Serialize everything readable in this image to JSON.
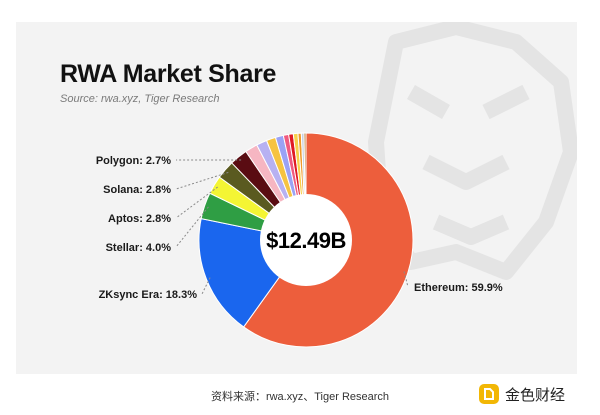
{
  "header": {
    "title": "RWA Market Share",
    "source": "Source: rwa.xyz, Tiger Research"
  },
  "center_value": "$12.49B",
  "footer": {
    "caption": "资料来源：rwa.xyz、Tiger Research",
    "brand": "金色财经"
  },
  "colors": {
    "background": "#f3f3f3",
    "watermark": "#e4e4e4",
    "ethereum": "#ed5e3c",
    "zksync": "#1a66ee",
    "stellar": "#2f9e44",
    "aptos": "#f4f534",
    "solana": "#5a5a20",
    "polygon": "#5a0c12",
    "brand_icon": "#f2b705"
  },
  "chart_data": {
    "type": "pie",
    "title": "RWA Market Share",
    "center_label": "$12.49B",
    "labelled_slices": [
      {
        "name": "Ethereum",
        "value": 59.9,
        "label": "Ethereum: 59.9%",
        "color": "#ed5e3c"
      },
      {
        "name": "ZKsync Era",
        "value": 18.3,
        "label": "ZKsync Era: 18.3%",
        "color": "#1a66ee"
      },
      {
        "name": "Stellar",
        "value": 4.0,
        "label": "Stellar: 4.0%",
        "color": "#2f9e44"
      },
      {
        "name": "Aptos",
        "value": 2.8,
        "label": "Aptos: 2.8%",
        "color": "#f4f534"
      },
      {
        "name": "Solana",
        "value": 2.8,
        "label": "Solana: 2.8%",
        "color": "#5a5a20"
      },
      {
        "name": "Polygon",
        "value": 2.7,
        "label": "Polygon: 2.7%",
        "color": "#5a0c12"
      }
    ],
    "unlabelled_slices": [
      {
        "value": 1.9,
        "color": "#f6b6c2"
      },
      {
        "value": 1.6,
        "color": "#b7b1f2"
      },
      {
        "value": 1.4,
        "color": "#f6c341"
      },
      {
        "value": 1.2,
        "color": "#9aa2f5"
      },
      {
        "value": 0.8,
        "color": "#f05a80"
      },
      {
        "value": 0.7,
        "color": "#e01b23"
      },
      {
        "value": 0.7,
        "color": "#f7d04a"
      },
      {
        "value": 0.5,
        "color": "#f09a2a"
      },
      {
        "value": 0.4,
        "color": "#c7cfe0"
      },
      {
        "value": 0.3,
        "color": "#c0782a"
      }
    ],
    "legend": "none"
  }
}
